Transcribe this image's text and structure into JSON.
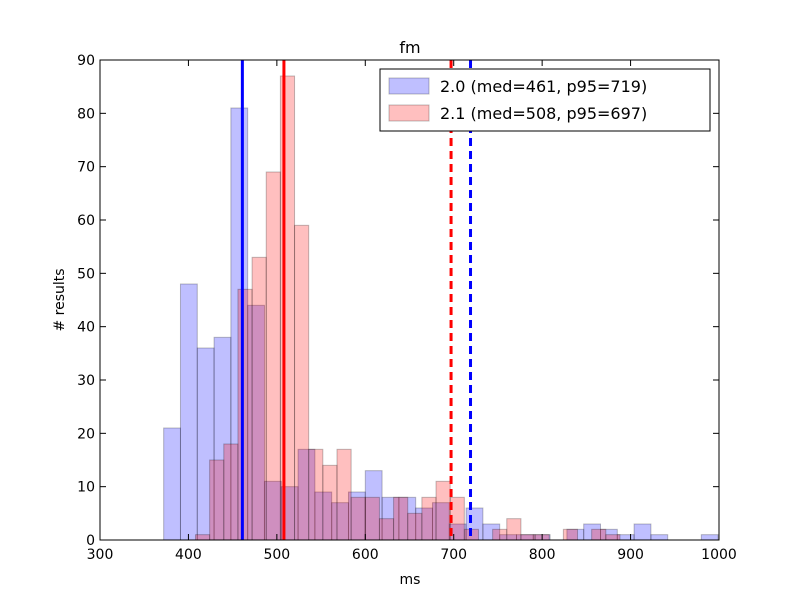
{
  "chart_data": {
    "type": "bar",
    "title": "fm",
    "xlabel": "ms",
    "ylabel": "# results",
    "xlim": [
      300,
      1000
    ],
    "ylim": [
      0,
      90
    ],
    "xticks": [
      300,
      400,
      500,
      600,
      700,
      800,
      900,
      1000
    ],
    "yticks": [
      0,
      10,
      20,
      30,
      40,
      50,
      60,
      70,
      80,
      90
    ],
    "legend_position": "top-right",
    "series": [
      {
        "name": "2.0 (med=461, p95=719)",
        "color": "#0000ff",
        "median": 461,
        "p95": 719,
        "bins": [
          {
            "x0": 372,
            "x1": 391,
            "count": 21
          },
          {
            "x0": 391,
            "x1": 410,
            "count": 48
          },
          {
            "x0": 410,
            "x1": 429,
            "count": 36
          },
          {
            "x0": 429,
            "x1": 448,
            "count": 38
          },
          {
            "x0": 448,
            "x1": 467,
            "count": 81
          },
          {
            "x0": 467,
            "x1": 486,
            "count": 44
          },
          {
            "x0": 486,
            "x1": 505,
            "count": 11
          },
          {
            "x0": 505,
            "x1": 524,
            "count": 10
          },
          {
            "x0": 524,
            "x1": 543,
            "count": 17
          },
          {
            "x0": 543,
            "x1": 562,
            "count": 9
          },
          {
            "x0": 562,
            "x1": 581,
            "count": 7
          },
          {
            "x0": 581,
            "x1": 600,
            "count": 9
          },
          {
            "x0": 600,
            "x1": 619,
            "count": 13
          },
          {
            "x0": 619,
            "x1": 638,
            "count": 8
          },
          {
            "x0": 638,
            "x1": 657,
            "count": 8
          },
          {
            "x0": 657,
            "x1": 676,
            "count": 6
          },
          {
            "x0": 676,
            "x1": 695,
            "count": 7
          },
          {
            "x0": 695,
            "x1": 714,
            "count": 3
          },
          {
            "x0": 714,
            "x1": 733,
            "count": 6
          },
          {
            "x0": 733,
            "x1": 752,
            "count": 3
          },
          {
            "x0": 752,
            "x1": 771,
            "count": 1
          },
          {
            "x0": 771,
            "x1": 790,
            "count": 1
          },
          {
            "x0": 790,
            "x1": 809,
            "count": 1
          },
          {
            "x0": 809,
            "x1": 828,
            "count": 0
          },
          {
            "x0": 828,
            "x1": 847,
            "count": 2
          },
          {
            "x0": 847,
            "x1": 866,
            "count": 3
          },
          {
            "x0": 866,
            "x1": 885,
            "count": 2
          },
          {
            "x0": 885,
            "x1": 904,
            "count": 1
          },
          {
            "x0": 904,
            "x1": 923,
            "count": 3
          },
          {
            "x0": 923,
            "x1": 942,
            "count": 1
          },
          {
            "x0": 942,
            "x1": 961,
            "count": 0
          },
          {
            "x0": 961,
            "x1": 980,
            "count": 0
          },
          {
            "x0": 980,
            "x1": 999,
            "count": 1
          }
        ]
      },
      {
        "name": "2.1 (med=508, p95=697)",
        "color": "#ff0000",
        "median": 508,
        "p95": 697,
        "bins": [
          {
            "x0": 408,
            "x1": 424,
            "count": 1
          },
          {
            "x0": 424,
            "x1": 440,
            "count": 15
          },
          {
            "x0": 440,
            "x1": 456,
            "count": 18
          },
          {
            "x0": 456,
            "x1": 472,
            "count": 47
          },
          {
            "x0": 472,
            "x1": 488,
            "count": 53
          },
          {
            "x0": 488,
            "x1": 504,
            "count": 69
          },
          {
            "x0": 504,
            "x1": 520,
            "count": 87
          },
          {
            "x0": 520,
            "x1": 536,
            "count": 59
          },
          {
            "x0": 536,
            "x1": 552,
            "count": 17
          },
          {
            "x0": 552,
            "x1": 568,
            "count": 14
          },
          {
            "x0": 568,
            "x1": 584,
            "count": 17
          },
          {
            "x0": 584,
            "x1": 600,
            "count": 8
          },
          {
            "x0": 600,
            "x1": 616,
            "count": 8
          },
          {
            "x0": 616,
            "x1": 632,
            "count": 4
          },
          {
            "x0": 632,
            "x1": 648,
            "count": 8
          },
          {
            "x0": 648,
            "x1": 664,
            "count": 5
          },
          {
            "x0": 664,
            "x1": 680,
            "count": 8
          },
          {
            "x0": 680,
            "x1": 696,
            "count": 11
          },
          {
            "x0": 696,
            "x1": 712,
            "count": 8
          },
          {
            "x0": 712,
            "x1": 728,
            "count": 2
          },
          {
            "x0": 728,
            "x1": 744,
            "count": 0
          },
          {
            "x0": 744,
            "x1": 760,
            "count": 2
          },
          {
            "x0": 760,
            "x1": 776,
            "count": 4
          },
          {
            "x0": 776,
            "x1": 792,
            "count": 1
          },
          {
            "x0": 792,
            "x1": 808,
            "count": 1
          },
          {
            "x0": 808,
            "x1": 824,
            "count": 0
          },
          {
            "x0": 824,
            "x1": 840,
            "count": 2
          },
          {
            "x0": 840,
            "x1": 856,
            "count": 0
          },
          {
            "x0": 856,
            "x1": 872,
            "count": 2
          },
          {
            "x0": 872,
            "x1": 888,
            "count": 1
          }
        ]
      }
    ]
  }
}
